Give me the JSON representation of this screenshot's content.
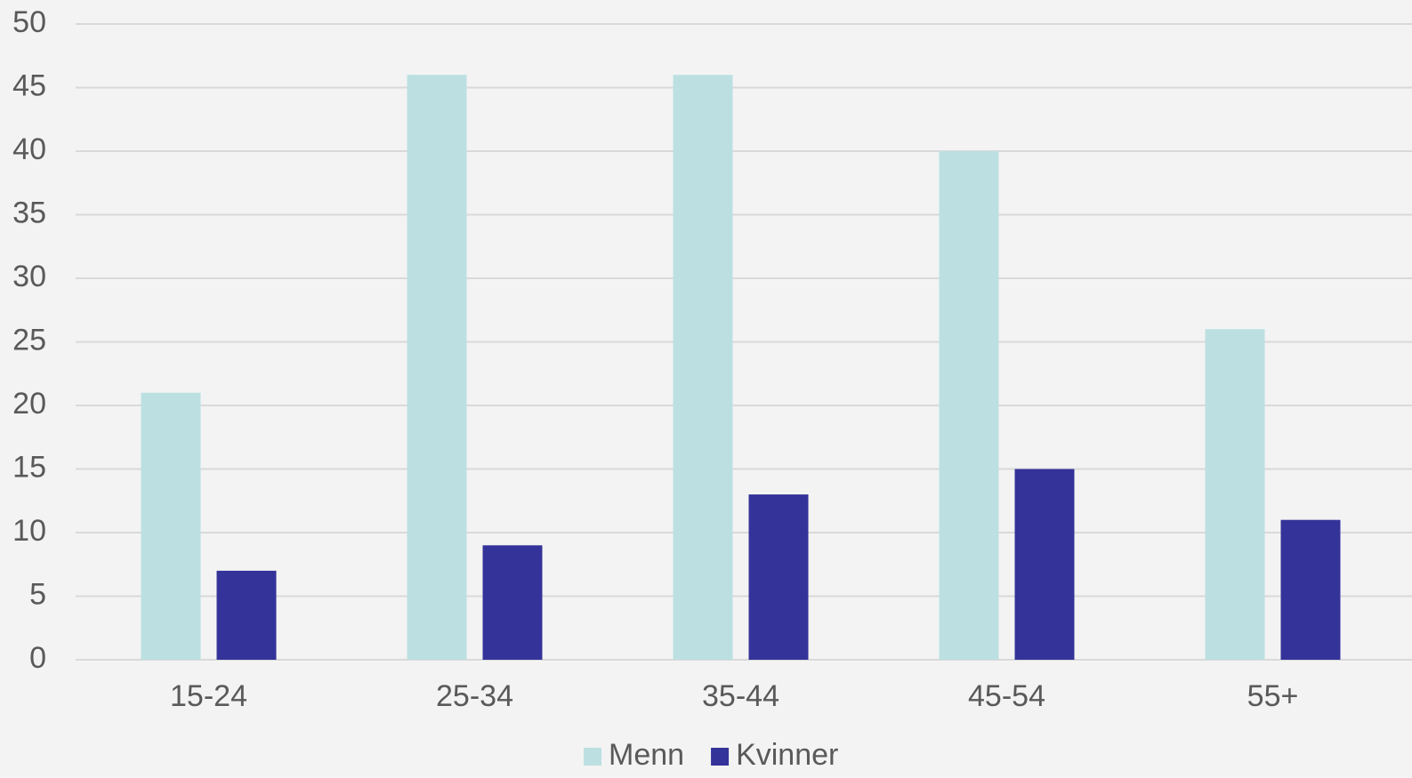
{
  "chart_data": {
    "type": "bar",
    "categories": [
      "15-24",
      "25-34",
      "35-44",
      "45-54",
      "55+"
    ],
    "series": [
      {
        "name": "Menn",
        "color": "#bce0e2",
        "values": [
          21,
          46,
          46,
          40,
          26
        ]
      },
      {
        "name": "Kvinner",
        "color": "#343399",
        "values": [
          7,
          9,
          13,
          15,
          11
        ]
      }
    ],
    "ylim": [
      0,
      50
    ],
    "yticks": [
      0,
      5,
      10,
      15,
      20,
      25,
      30,
      35,
      40,
      45,
      50
    ],
    "grid": true,
    "legend": "bottom"
  }
}
